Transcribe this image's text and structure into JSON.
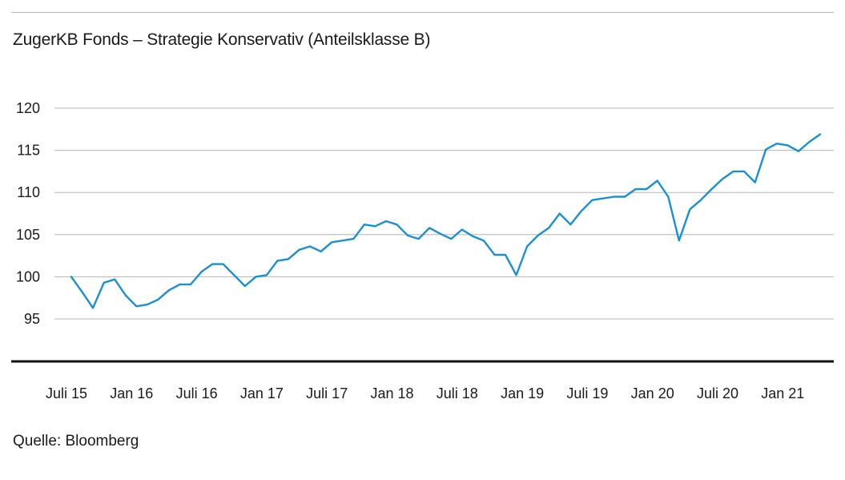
{
  "title": "ZugerKB Fonds – Strategie Konservativ (Anteilsklasse B)",
  "source": "Quelle: Bloomberg",
  "chart_data": {
    "type": "line",
    "title": "ZugerKB Fonds – Strategie Konservativ (Anteilsklasse B)",
    "xlabel": "",
    "ylabel": "",
    "ylim": [
      90,
      120
    ],
    "grid": true,
    "color": "#1a8fd1",
    "y_ticks": [
      120,
      115,
      110,
      105,
      100,
      95
    ],
    "x_ticks": [
      {
        "label": "Juli 15",
        "t": 0
      },
      {
        "label": "Jan 16",
        "t": 6
      },
      {
        "label": "Juli 16",
        "t": 12
      },
      {
        "label": "Jan 17",
        "t": 18
      },
      {
        "label": "Juli 17",
        "t": 24
      },
      {
        "label": "Jan 18",
        "t": 30
      },
      {
        "label": "Juli 18",
        "t": 36
      },
      {
        "label": "Jan 19",
        "t": 42
      },
      {
        "label": "Juli 19",
        "t": 48
      },
      {
        "label": "Jan 20",
        "t": 54
      },
      {
        "label": "Juli 20",
        "t": 60
      },
      {
        "label": "Jan 21",
        "t": 66
      }
    ],
    "series": [
      {
        "name": "Strategie Konservativ (Anteilsklasse B)",
        "values": [
          100.0,
          98.2,
          96.3,
          99.3,
          99.7,
          97.8,
          96.5,
          96.7,
          97.3,
          98.4,
          99.1,
          99.1,
          100.6,
          101.5,
          101.5,
          100.2,
          98.9,
          100.0,
          100.2,
          101.9,
          102.1,
          103.2,
          103.6,
          103.0,
          104.1,
          104.3,
          104.5,
          106.2,
          106.0,
          106.6,
          106.2,
          104.9,
          104.5,
          105.8,
          105.1,
          104.5,
          105.6,
          104.8,
          104.3,
          102.6,
          102.6,
          100.2,
          103.6,
          104.9,
          105.8,
          107.5,
          106.2,
          107.8,
          109.1,
          109.3,
          109.5,
          109.5,
          110.4,
          110.4,
          111.4,
          109.5,
          104.3,
          108.0,
          109.1,
          110.4,
          111.6,
          112.5,
          112.5,
          111.2,
          115.1,
          115.8,
          115.6,
          114.9,
          116.0,
          116.9
        ]
      }
    ]
  }
}
